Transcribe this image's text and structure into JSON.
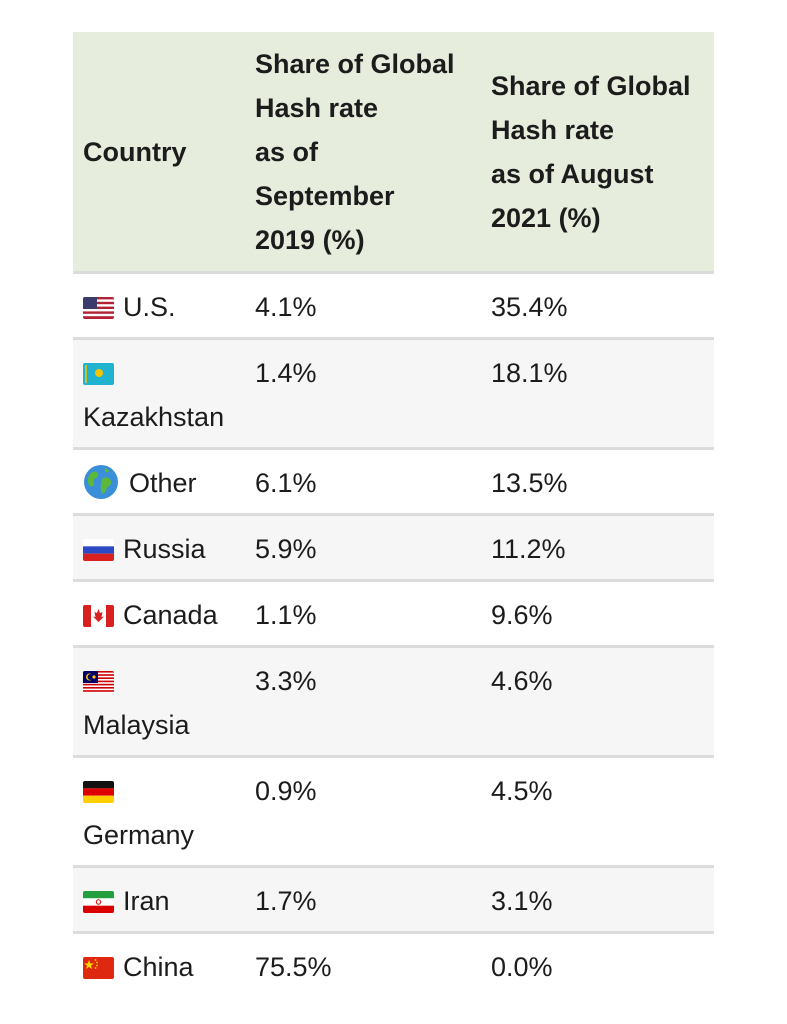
{
  "table": {
    "headers": {
      "country": "Country",
      "sep2019": [
        "Share of Global",
        "Hash rate",
        "as of",
        "September",
        "2019 (%)"
      ],
      "aug2021": [
        "Share of Global",
        "Hash rate",
        "as of August",
        "2021 (%)"
      ]
    },
    "rows": [
      {
        "country": "U.S.",
        "flag": "us-flag-icon",
        "sep2019": "4.1%",
        "aug2021": "35.4%"
      },
      {
        "country": "Kazakhstan",
        "flag": "kazakhstan-flag-icon",
        "sep2019": "1.4%",
        "aug2021": "18.1%"
      },
      {
        "country": "Other",
        "flag": "globe-icon",
        "sep2019": "6.1%",
        "aug2021": "13.5%"
      },
      {
        "country": "Russia",
        "flag": "russia-flag-icon",
        "sep2019": "5.9%",
        "aug2021": "11.2%"
      },
      {
        "country": "Canada",
        "flag": "canada-flag-icon",
        "sep2019": "1.1%",
        "aug2021": "9.6%"
      },
      {
        "country": "Malaysia",
        "flag": "malaysia-flag-icon",
        "sep2019": "3.3%",
        "aug2021": "4.6%"
      },
      {
        "country": "Germany",
        "flag": "germany-flag-icon",
        "sep2019": "0.9%",
        "aug2021": "4.5%"
      },
      {
        "country": "Iran",
        "flag": "iran-flag-icon",
        "sep2019": "1.7%",
        "aug2021": "3.1%"
      },
      {
        "country": "China",
        "flag": "china-flag-icon",
        "sep2019": "75.5%",
        "aug2021": "0.0%"
      }
    ]
  },
  "colors": {
    "header_bg": "#e6eddc",
    "row_shade": "#f6f6f6",
    "divider": "#dcdcdc"
  }
}
